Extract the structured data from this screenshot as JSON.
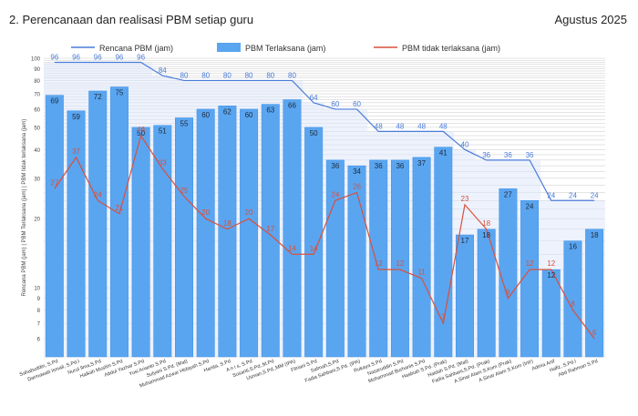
{
  "header": {
    "title": "2. Perencanaan dan realisasi PBM setiap guru",
    "period": "Agustus 2025"
  },
  "colors": {
    "plan_line": "#4a7bd8",
    "bar": "#5aa5f0",
    "bar_edge": "#3b8fe6",
    "missed_line": "#d9503c",
    "plan_area": "#dfe7fa",
    "grid": "#c8c8c8"
  },
  "chart_data": {
    "type": "bar",
    "scale": "log",
    "ylabel": "Rencana PBM (jam) | PBM Terlaksana (jam) | PBM tidak terlaksana (jam)",
    "yticks": [
      10,
      20,
      30,
      40,
      50,
      60,
      70,
      80,
      90,
      100
    ],
    "ylim": [
      5,
      100
    ],
    "legend": {
      "position": "top",
      "entries": [
        "Rencana PBM (jam)",
        "PBM Terlaksana (jam)",
        "PBM tidak terlaksana (jam)"
      ]
    },
    "categories": [
      "Sahabuddin, S.Pd",
      "Darmawati Ismail, S.Pd.I",
      "Nurul Ilma,S.Pd",
      "Haikah Muslim S.Pd",
      "Abdul Yazhar S.Pd",
      "Yusi Arianto S.Pd",
      "Sulyani S.Pd. (Mat)",
      "Muhammad Azwar Hidayah S.Pd",
      "Hanita, S.Pd",
      "A n i s, S.Pd",
      "Susanti,S.Pd.,M.Pd",
      "Usman,S.Pd.,MM (IPA)",
      "Fitriani S.Pd",
      "Salmah,S.Pd",
      "Fadia Sahbani,S.Pd. (IPA)",
      "Rukaya S.Pd",
      "Nasaruddin S.Pd",
      "Mohammad Burhanis S.Pd",
      "Hasbiah S.Pd. (Prak)",
      "Haidah S.Pd. (Mat)",
      "Fadia Sahbani,S.Pd. (Prak)",
      "A.Sinar Alam S.Kom (Prak)",
      "A.Sinar Alam S.Kom (Intr)",
      "Adinia Anif",
      "Hafiz, S.Pd.I",
      "Abd Rahman S.Pd"
    ],
    "series": [
      {
        "name": "Rencana PBM (jam)",
        "kind": "line",
        "values": [
          96,
          96,
          96,
          96,
          96,
          84,
          80,
          80,
          80,
          80,
          80,
          80,
          64,
          60,
          60,
          48,
          48,
          48,
          48,
          40,
          36,
          36,
          36,
          24,
          24,
          24
        ]
      },
      {
        "name": "PBM Terlaksana (jam)",
        "kind": "bar",
        "values": [
          69,
          59,
          72,
          75,
          50,
          51,
          55,
          60,
          62,
          60,
          63,
          66,
          50,
          36,
          34,
          36,
          36,
          37,
          41,
          17,
          18,
          27,
          24,
          12,
          16,
          18
        ]
      },
      {
        "name": "PBM tidak terlaksana (jam)",
        "kind": "line",
        "values": [
          27,
          37,
          24,
          21,
          46,
          33,
          25,
          20,
          18,
          20,
          17,
          14,
          14,
          24,
          26,
          12,
          12,
          11,
          7,
          23,
          18,
          9,
          12,
          12,
          8,
          6
        ]
      }
    ]
  }
}
